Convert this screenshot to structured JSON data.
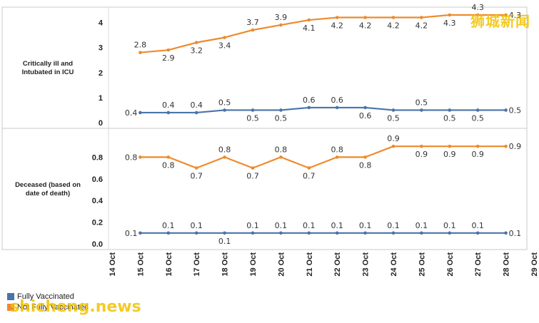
{
  "watermark_cn": "狮城新闻",
  "watermark_en": "shicheng.news",
  "colors": {
    "fully_vaccinated": "#4a74a8",
    "not_fully_vaccinated": "#ee8a2c"
  },
  "legend": [
    {
      "label": "Fully Vaccinated",
      "color": "#4a74a8"
    },
    {
      "label": "Not Fully Vaccinated",
      "color": "#ee8a2c"
    }
  ],
  "chart_data": [
    {
      "type": "line",
      "ylabel": "Critically ill and Intubated in ICU",
      "ylim": [
        0,
        4.5
      ],
      "yticks": [
        "0",
        "1",
        "2",
        "3",
        "4"
      ],
      "ytick_values": [
        0,
        1,
        2,
        3,
        4
      ],
      "x": [
        "15 Oct",
        "16 Oct",
        "17 Oct",
        "18 Oct",
        "19 Oct",
        "20 Oct",
        "21 Oct",
        "22 Oct",
        "23 Oct",
        "24 Oct",
        "25 Oct",
        "26 Oct",
        "27 Oct",
        "28 Oct"
      ],
      "series": [
        {
          "name": "Not Fully Vaccinated",
          "values": [
            2.8,
            2.9,
            3.2,
            3.4,
            3.7,
            3.9,
            4.1,
            4.2,
            4.2,
            4.2,
            4.2,
            4.3,
            4.3,
            4.3
          ]
        },
        {
          "name": "Fully Vaccinated",
          "values": [
            0.4,
            0.4,
            0.4,
            0.5,
            0.5,
            0.5,
            0.6,
            0.6,
            0.6,
            0.5,
            0.5,
            0.5,
            0.5,
            0.5
          ]
        }
      ]
    },
    {
      "type": "line",
      "ylabel": "Deceased (based on date of death)",
      "ylim": [
        0,
        1.0
      ],
      "yticks": [
        "0.0",
        "0.2",
        "0.4",
        "0.6",
        "0.8"
      ],
      "ytick_values": [
        0,
        0.2,
        0.4,
        0.6,
        0.8
      ],
      "x": [
        "15 Oct",
        "16 Oct",
        "17 Oct",
        "18 Oct",
        "19 Oct",
        "20 Oct",
        "21 Oct",
        "22 Oct",
        "23 Oct",
        "24 Oct",
        "25 Oct",
        "26 Oct",
        "27 Oct",
        "28 Oct"
      ],
      "series": [
        {
          "name": "Not Fully Vaccinated",
          "values": [
            0.8,
            0.8,
            0.7,
            0.8,
            0.7,
            0.8,
            0.7,
            0.8,
            0.8,
            0.9,
            0.9,
            0.9,
            0.9,
            0.9
          ]
        },
        {
          "name": "Fully Vaccinated",
          "values": [
            0.1,
            0.1,
            0.1,
            0.1,
            0.1,
            0.1,
            0.1,
            0.1,
            0.1,
            0.1,
            0.1,
            0.1,
            0.1,
            0.1
          ]
        }
      ]
    }
  ],
  "x_axis_ticks": [
    "14 Oct",
    "15 Oct",
    "16 Oct",
    "17 Oct",
    "18 Oct",
    "19 Oct",
    "20 Oct",
    "21 Oct",
    "22 Oct",
    "23 Oct",
    "24 Oct",
    "25 Oct",
    "26 Oct",
    "27 Oct",
    "28 Oct",
    "29 Oct"
  ]
}
